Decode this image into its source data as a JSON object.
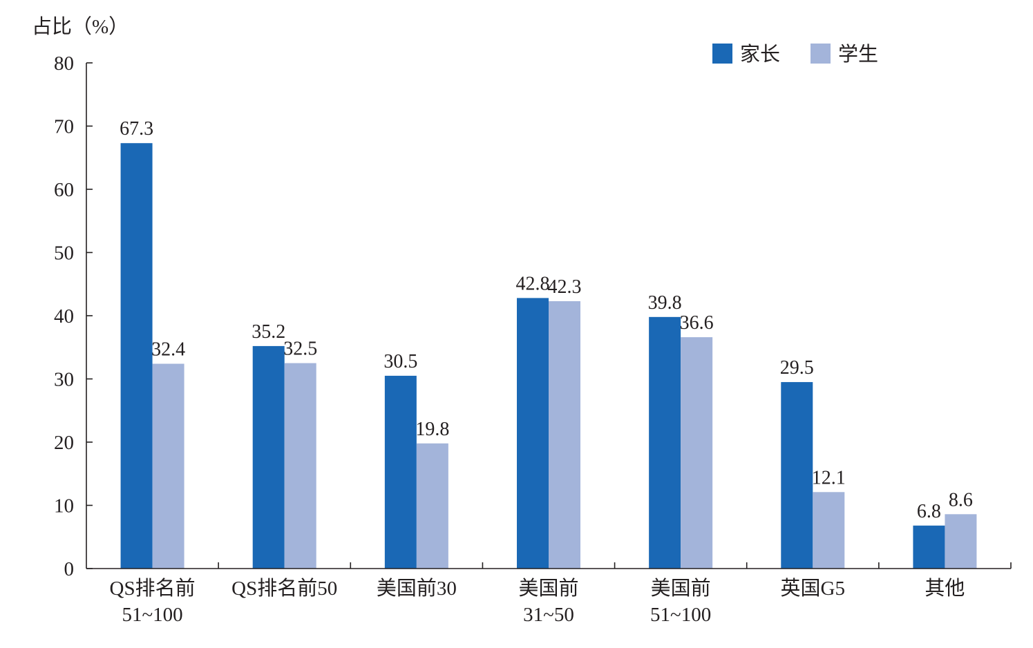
{
  "chart_data": {
    "type": "bar",
    "ylabel": "占比（%）",
    "ylim": [
      0,
      80
    ],
    "yticks": [
      0,
      10,
      20,
      30,
      40,
      50,
      60,
      70,
      80
    ],
    "grid": false,
    "legend_position": "top-right",
    "categories": [
      [
        "QS排名前",
        "51~100"
      ],
      [
        "QS排名前50"
      ],
      [
        "美国前30"
      ],
      [
        "美国前",
        "31~50"
      ],
      [
        "美国前",
        "51~100"
      ],
      [
        "英国G5"
      ],
      [
        "其他"
      ]
    ],
    "series": [
      {
        "name": "家长",
        "color": "#1a68b5",
        "values": [
          67.3,
          35.2,
          30.5,
          42.8,
          39.8,
          29.5,
          6.8
        ]
      },
      {
        "name": "学生",
        "color": "#a3b4da",
        "values": [
          32.4,
          32.5,
          19.8,
          42.3,
          36.6,
          12.1,
          8.6
        ]
      }
    ]
  }
}
